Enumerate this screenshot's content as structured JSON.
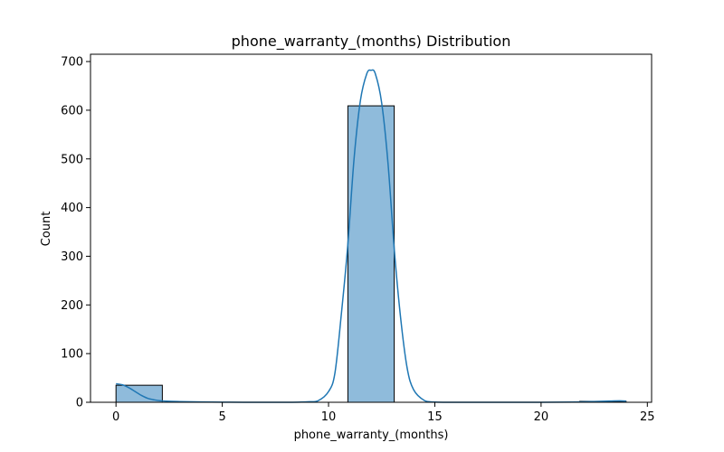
{
  "chart_data": {
    "type": "bar",
    "title": "phone_warranty_(months) Distribution",
    "xlabel": "phone_warranty_(months)",
    "ylabel": "Count",
    "xlim": [
      -1.2,
      25.2
    ],
    "ylim": [
      0,
      715
    ],
    "x_ticks": [
      0,
      5,
      10,
      15,
      20,
      25
    ],
    "y_ticks": [
      0,
      100,
      200,
      300,
      400,
      500,
      600,
      700
    ],
    "bins": [
      {
        "x0": 0.0,
        "x1": 2.18,
        "count": 35
      },
      {
        "x0": 2.18,
        "x1": 4.36,
        "count": 0
      },
      {
        "x0": 4.36,
        "x1": 6.55,
        "count": 0
      },
      {
        "x0": 6.55,
        "x1": 8.73,
        "count": 0
      },
      {
        "x0": 8.73,
        "x1": 10.91,
        "count": 0
      },
      {
        "x0": 10.91,
        "x1": 13.09,
        "count": 609
      },
      {
        "x0": 13.09,
        "x1": 15.27,
        "count": 0
      },
      {
        "x0": 15.27,
        "x1": 17.45,
        "count": 0
      },
      {
        "x0": 17.45,
        "x1": 19.64,
        "count": 0
      },
      {
        "x0": 19.64,
        "x1": 21.82,
        "count": 0
      },
      {
        "x0": 21.82,
        "x1": 24.0,
        "count": 2
      }
    ],
    "kde": {
      "x": [
        0,
        0.3,
        0.6,
        0.9,
        1.2,
        1.5,
        1.8,
        2.1,
        2.5,
        3,
        4,
        5,
        6,
        7,
        8,
        9,
        9.5,
        10,
        10.3,
        10.6,
        10.9,
        11.2,
        11.5,
        11.8,
        12,
        12.2,
        12.5,
        12.8,
        13.1,
        13.4,
        13.7,
        14,
        14.5,
        15,
        16,
        18,
        20,
        21.5,
        22.5,
        23.2,
        23.7,
        24
      ],
      "y": [
        38,
        36,
        30,
        22,
        14,
        8,
        5,
        3,
        2,
        1.5,
        0.8,
        0.3,
        0,
        0,
        0,
        1,
        3,
        22,
        60,
        180,
        320,
        500,
        620,
        675,
        682,
        675,
        615,
        490,
        310,
        170,
        70,
        26,
        4,
        0.5,
        0,
        0,
        0,
        0.5,
        1.5,
        2.5,
        3,
        2.5
      ]
    },
    "colors": {
      "bar_fill": "#8fbbdb",
      "bar_edge": "#000000",
      "kde_line": "#1f77b4"
    }
  }
}
